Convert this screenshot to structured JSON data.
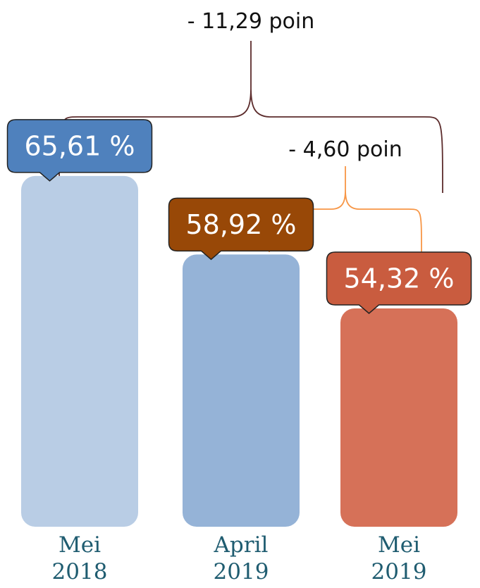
{
  "chart_data": {
    "type": "bar",
    "categories": [
      [
        "Mei",
        "2018"
      ],
      [
        "April",
        "2019"
      ],
      [
        "Mei",
        "2019"
      ]
    ],
    "values": [
      65.61,
      58.92,
      54.32
    ],
    "value_labels": [
      "65,61 %",
      "58,92 %",
      "54,32 %"
    ],
    "unit": "%",
    "bar_colors": [
      "#b9cde5",
      "#95b3d7",
      "#d67158"
    ],
    "callout_colors": [
      "#4f81bd",
      "#984807",
      "#c95c3f"
    ],
    "annotations": [
      {
        "text": "- 11,29 poin",
        "from": 0,
        "to": 2,
        "color": "#5c2c2c"
      },
      {
        "text": "- 4,60 poin",
        "from": 1,
        "to": 2,
        "color": "#f79646"
      }
    ]
  }
}
